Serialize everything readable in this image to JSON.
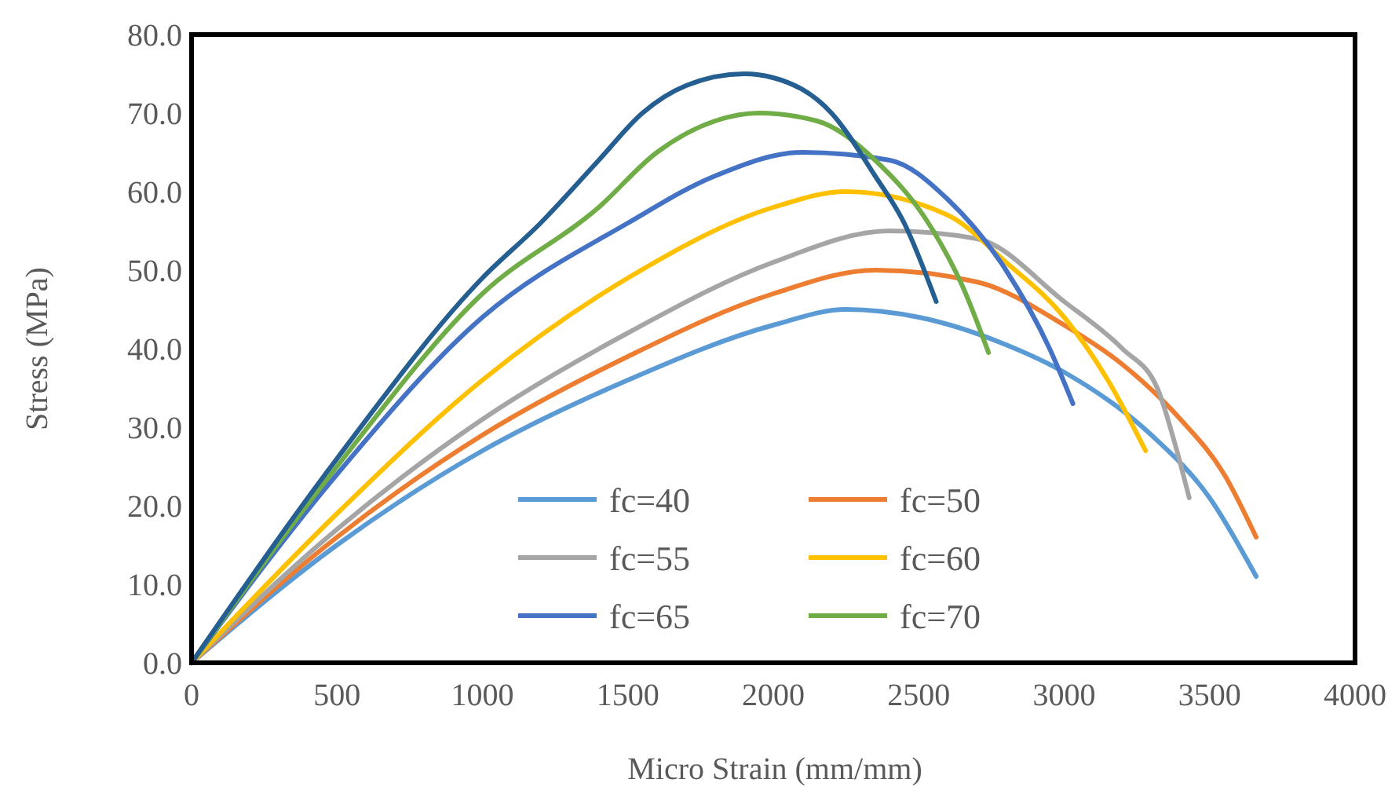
{
  "chart_data": {
    "type": "line",
    "xlabel": "Micro Strain (mm/mm)",
    "ylabel": "Stress (MPa)",
    "xlim": [
      0,
      4000
    ],
    "ylim": [
      0,
      80
    ],
    "xticks": [
      0,
      500,
      1000,
      1500,
      2000,
      2500,
      3000,
      3500,
      4000
    ],
    "yticks": [
      {
        "value": 0,
        "label": "0.0"
      },
      {
        "value": 10,
        "label": "10.0"
      },
      {
        "value": 20,
        "label": "20.0"
      },
      {
        "value": 30,
        "label": "30.0"
      },
      {
        "value": 40,
        "label": "40.0"
      },
      {
        "value": 50,
        "label": "50.0"
      },
      {
        "value": 60,
        "label": "60.0"
      },
      {
        "value": 70,
        "label": "70.0"
      },
      {
        "value": 80,
        "label": "80.0"
      }
    ],
    "grid": false,
    "legend": "bottom",
    "marker": "none",
    "line_style": "solid",
    "series": [
      {
        "name": "fc=40",
        "color": "#5b9bd5",
        "x": [
          0,
          500,
          1000,
          1500,
          2000,
          2250,
          2500,
          2800,
          3000,
          3300,
          3500,
          3660
        ],
        "values": [
          0,
          15,
          27,
          36,
          43,
          45,
          44,
          40.5,
          37,
          29,
          21,
          11
        ]
      },
      {
        "name": "fc=50",
        "color": "#ed7d31",
        "x": [
          0,
          500,
          1000,
          1500,
          2000,
          2350,
          2700,
          3000,
          3200,
          3400,
          3550,
          3660
        ],
        "values": [
          0,
          16,
          29,
          39,
          47,
          50,
          48.5,
          43,
          38,
          31,
          24,
          16
        ]
      },
      {
        "name": "fc=55",
        "color": "#a5a5a5",
        "x": [
          0,
          500,
          1000,
          1500,
          2000,
          2400,
          2700,
          3000,
          3200,
          3320,
          3380,
          3430
        ],
        "values": [
          0,
          17,
          31,
          42,
          51,
          55,
          54,
          46,
          40,
          35,
          28,
          21
        ]
      },
      {
        "name": "fc=60",
        "color": "#ffc000",
        "x": [
          0,
          500,
          1000,
          1500,
          2000,
          2250,
          2600,
          2800,
          3000,
          3150,
          3280
        ],
        "values": [
          0,
          19,
          36,
          49,
          58,
          60,
          57,
          51,
          44,
          36,
          27
        ]
      },
      {
        "name": "fc=65",
        "color": "#4472c4",
        "x": [
          0,
          500,
          1000,
          1500,
          1800,
          2100,
          2400,
          2600,
          2800,
          2950,
          3030
        ],
        "values": [
          0,
          24,
          44,
          56,
          62,
          65,
          64,
          59,
          50,
          40,
          33
        ]
      },
      {
        "name": "fc=70",
        "color": "#70ad47",
        "x": [
          0,
          500,
          1000,
          1400,
          1600,
          1800,
          1950,
          2150,
          2350,
          2550,
          2650,
          2740
        ],
        "values": [
          0,
          25,
          47,
          58,
          65,
          69,
          70,
          69,
          64,
          55,
          48,
          39.5
        ]
      },
      {
        "color": "#255e91",
        "x": [
          0,
          500,
          1000,
          1200,
          1400,
          1550,
          1700,
          1900,
          2000,
          2200,
          2350,
          2450,
          2560
        ],
        "values": [
          0,
          26,
          49,
          56,
          64,
          70,
          73.5,
          75,
          74.5,
          70,
          62,
          56,
          46
        ]
      }
    ]
  }
}
